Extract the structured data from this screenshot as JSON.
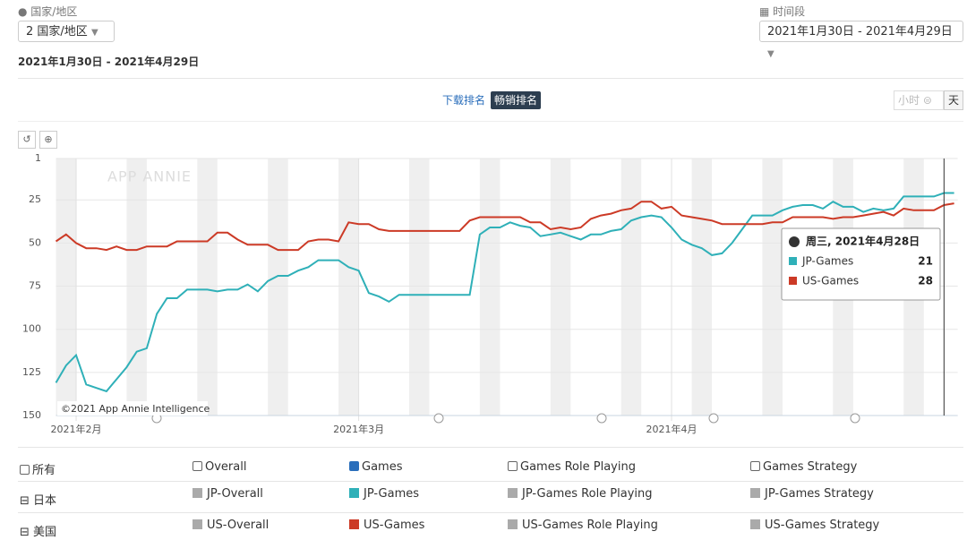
{
  "filters": {
    "country_label": "国家/地区",
    "country_value": "2 国家/地区",
    "period_label": "时间段",
    "period_value": "2021年1月30日 - 2021年4月29日"
  },
  "date_range": "2021年1月30日 - 2021年4月29日",
  "tabs": [
    "下载排名",
    "畅销排名"
  ],
  "granularity": [
    "小时",
    "天"
  ],
  "chart_data": {
    "type": "line",
    "watermark": "APP ANNIE",
    "copyright": "©2021 App Annie Intelligence",
    "tooltip_title": "周三, 2021年4月28日",
    "x": [
      "2021-01-30",
      "2021-01-31",
      "2021-02-01",
      "2021-02-02",
      "2021-02-03",
      "2021-02-04",
      "2021-02-05",
      "2021-02-06",
      "2021-02-07",
      "2021-02-08",
      "2021-02-09",
      "2021-02-10",
      "2021-02-11",
      "2021-02-12",
      "2021-02-13",
      "2021-02-14",
      "2021-02-15",
      "2021-02-16",
      "2021-02-17",
      "2021-02-18",
      "2021-02-19",
      "2021-02-20",
      "2021-02-21",
      "2021-02-22",
      "2021-02-23",
      "2021-02-24",
      "2021-02-25",
      "2021-02-26",
      "2021-02-27",
      "2021-02-28",
      "2021-03-01",
      "2021-03-02",
      "2021-03-03",
      "2021-03-04",
      "2021-03-05",
      "2021-03-06",
      "2021-03-07",
      "2021-03-08",
      "2021-03-09",
      "2021-03-10",
      "2021-03-11",
      "2021-03-12",
      "2021-03-13",
      "2021-03-14",
      "2021-03-15",
      "2021-03-16",
      "2021-03-17",
      "2021-03-18",
      "2021-03-19",
      "2021-03-20",
      "2021-03-21",
      "2021-03-22",
      "2021-03-23",
      "2021-03-24",
      "2021-03-25",
      "2021-03-26",
      "2021-03-27",
      "2021-03-28",
      "2021-03-29",
      "2021-03-30",
      "2021-03-31",
      "2021-04-01",
      "2021-04-02",
      "2021-04-03",
      "2021-04-04",
      "2021-04-05",
      "2021-04-06",
      "2021-04-07",
      "2021-04-08",
      "2021-04-09",
      "2021-04-10",
      "2021-04-11",
      "2021-04-12",
      "2021-04-13",
      "2021-04-14",
      "2021-04-15",
      "2021-04-16",
      "2021-04-17",
      "2021-04-18",
      "2021-04-19",
      "2021-04-20",
      "2021-04-21",
      "2021-04-22",
      "2021-04-23",
      "2021-04-24",
      "2021-04-25",
      "2021-04-26",
      "2021-04-27",
      "2021-04-28",
      "2021-04-29"
    ],
    "xlim": [
      "2021-01-30",
      "2021-04-29"
    ],
    "xticks": [
      {
        "value": "2021-02-01",
        "label": "2021年2月"
      },
      {
        "value": "2021-03-01",
        "label": "2021年3月"
      },
      {
        "value": "2021-04-01",
        "label": "2021年4月"
      }
    ],
    "ylim": [
      1,
      150
    ],
    "y_inverted": true,
    "yticks": [
      1,
      25,
      50,
      75,
      100,
      125,
      150
    ],
    "grid": true,
    "series": [
      {
        "name": "JP-Games",
        "color": "#2fb0b8",
        "values": [
          131,
          121,
          115,
          132,
          134,
          136,
          129,
          122,
          113,
          111,
          91,
          82,
          82,
          77,
          77,
          77,
          78,
          77,
          77,
          74,
          78,
          72,
          69,
          69,
          66,
          64,
          60,
          60,
          60,
          64,
          66,
          79,
          81,
          84,
          80,
          80,
          80,
          80,
          80,
          80,
          80,
          80,
          45,
          41,
          41,
          38,
          40,
          41,
          46,
          45,
          44,
          46,
          48,
          45,
          45,
          43,
          42,
          37,
          35,
          34,
          35,
          41,
          48,
          51,
          53,
          57,
          56,
          50,
          42,
          34,
          34,
          34,
          31,
          29,
          28,
          28,
          30,
          26,
          29,
          29,
          32,
          30,
          31,
          30,
          23,
          23,
          23,
          23,
          21,
          21
        ]
      },
      {
        "name": "US-Games",
        "color": "#cc3a26",
        "values": [
          49,
          45,
          50,
          53,
          53,
          54,
          52,
          54,
          54,
          52,
          52,
          52,
          49,
          49,
          49,
          49,
          44,
          44,
          48,
          51,
          51,
          51,
          54,
          54,
          54,
          49,
          48,
          48,
          49,
          38,
          39,
          39,
          42,
          43,
          43,
          43,
          43,
          43,
          43,
          43,
          43,
          37,
          35,
          35,
          35,
          35,
          35,
          38,
          38,
          42,
          41,
          42,
          41,
          36,
          34,
          33,
          31,
          30,
          26,
          26,
          30,
          29,
          34,
          35,
          36,
          37,
          39,
          39,
          39,
          39,
          39,
          38,
          38,
          35,
          35,
          35,
          35,
          36,
          35,
          35,
          34,
          33,
          32,
          34,
          30,
          31,
          31,
          31,
          28,
          27
        ]
      }
    ]
  },
  "legend_table": {
    "columns": [
      "所有",
      "Overall",
      "Games",
      "Games Role Playing",
      "Games Strategy"
    ],
    "rows": [
      {
        "name": "日本",
        "items": [
          "JP-Overall",
          "JP-Games Role Playing",
          "JP-Games Strategy"
        ]
      },
      {
        "name": "美国",
        "items": [
          "US-Overall",
          "US-Games Role Playing",
          "US-Games Strategy"
        ]
      }
    ]
  }
}
